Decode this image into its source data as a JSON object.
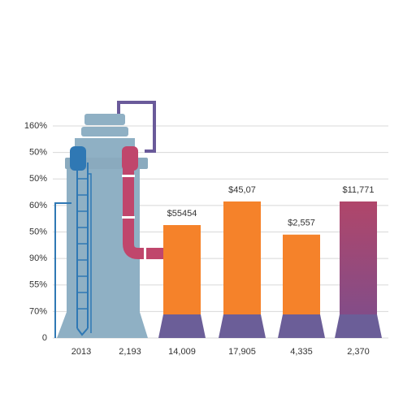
{
  "chart_data": {
    "type": "bar",
    "categories": [
      "2013",
      "2,193",
      "14,009",
      "17,905",
      "4,335",
      "2,370"
    ],
    "values": [
      null,
      null,
      4.26,
      5.15,
      3.9,
      5.15
    ],
    "colors": [
      null,
      null,
      "#f5822a",
      "#f5822a",
      "#f5822a",
      "#9c4a7c"
    ],
    "annotations": [
      null,
      null,
      "$55454",
      "$45,07",
      "$2,557",
      "$11,771"
    ],
    "ylim": [
      0,
      8
    ],
    "yticks": [
      {
        "value": 0,
        "label": "0"
      },
      {
        "value": 1,
        "label": "70%"
      },
      {
        "value": 2,
        "label": "55%"
      },
      {
        "value": 3,
        "label": "90%"
      },
      {
        "value": 4,
        "label": "50%"
      },
      {
        "value": 5,
        "label": "60%"
      },
      {
        "value": 6,
        "label": "50%"
      },
      {
        "value": 7,
        "label": "50%"
      },
      {
        "value": 8,
        "label": "160%"
      }
    ],
    "grid": true
  }
}
